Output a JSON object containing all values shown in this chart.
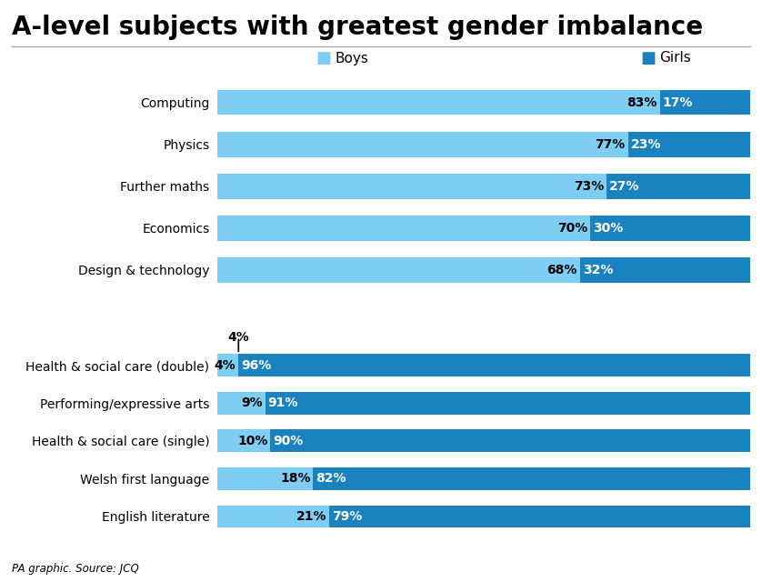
{
  "title": "A-level subjects with greatest gender imbalance",
  "source": "PA graphic. Source: JCQ",
  "boys_color": "#7ECEF4",
  "girls_color": "#1A82BF",
  "top_subjects": [
    {
      "name": "Computing",
      "boys": 83,
      "girls": 17
    },
    {
      "name": "Physics",
      "boys": 77,
      "girls": 23
    },
    {
      "name": "Further maths",
      "boys": 73,
      "girls": 27
    },
    {
      "name": "Economics",
      "boys": 70,
      "girls": 30
    },
    {
      "name": "Design & technology",
      "boys": 68,
      "girls": 32
    }
  ],
  "bottom_subjects": [
    {
      "name": "English literature",
      "boys": 21,
      "girls": 79
    },
    {
      "name": "Welsh first language",
      "boys": 18,
      "girls": 82
    },
    {
      "name": "Health & social care (single)",
      "boys": 10,
      "girls": 90
    },
    {
      "name": "Performing/expressive arts",
      "boys": 9,
      "girls": 91
    },
    {
      "name": "Health & social care (double)",
      "boys": 4,
      "girls": 96
    }
  ],
  "title_fontsize": 20,
  "label_fontsize": 10,
  "bar_label_fontsize": 10,
  "legend_fontsize": 11
}
